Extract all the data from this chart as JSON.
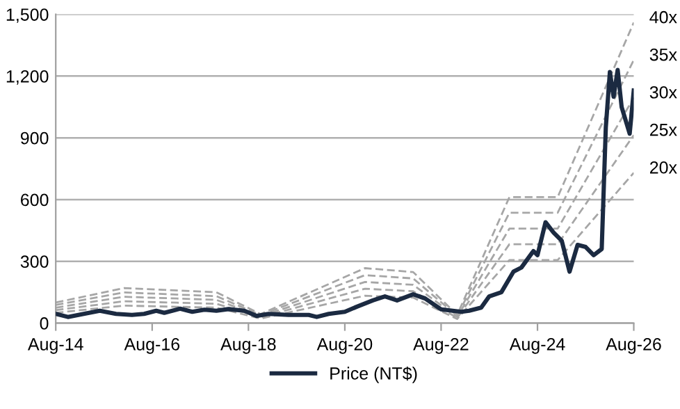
{
  "chart_data": {
    "type": "line",
    "xlim": [
      "2014-08",
      "2026-08"
    ],
    "xticks": [
      {
        "value": "2014-08",
        "label": "Aug-14"
      },
      {
        "value": "2016-08",
        "label": "Aug-16"
      },
      {
        "value": "2018-08",
        "label": "Aug-18"
      },
      {
        "value": "2020-08",
        "label": "Aug-20"
      },
      {
        "value": "2022-08",
        "label": "Aug-22"
      },
      {
        "value": "2024-08",
        "label": "Aug-24"
      },
      {
        "value": "2026-08",
        "label": "Aug-26"
      }
    ],
    "ylim": [
      0,
      1500
    ],
    "yticks": [
      0,
      300,
      600,
      900,
      {
        "value": 1200,
        "label": "1,200"
      },
      {
        "value": 1500,
        "label": "1,500"
      }
    ],
    "grid": "y",
    "legend": "bottom",
    "series": [
      {
        "name": "20x",
        "color": "#a6a6a6",
        "line_style": "dashed",
        "x": [
          "2014-08",
          "2016-01",
          "2017-12",
          "2018-11",
          "2021-01",
          "2022-01",
          "2022-12",
          "2024-01",
          "2025-01",
          "2026-08"
        ],
        "values": [
          50,
          85,
          75,
          22,
          133,
          124,
          20,
          306,
          306,
          730
        ]
      },
      {
        "name": "25x",
        "color": "#a6a6a6",
        "line_style": "dashed",
        "x": [
          "2014-08",
          "2016-01",
          "2017-12",
          "2018-11",
          "2021-01",
          "2022-01",
          "2022-12",
          "2024-01",
          "2025-01",
          "2026-08"
        ],
        "values": [
          63,
          106,
          94,
          28,
          167,
          155,
          25,
          383,
          383,
          913
        ]
      },
      {
        "name": "30x",
        "color": "#a6a6a6",
        "line_style": "dashed",
        "x": [
          "2014-08",
          "2016-01",
          "2017-12",
          "2018-11",
          "2021-01",
          "2022-01",
          "2022-12",
          "2024-01",
          "2025-01",
          "2026-08"
        ],
        "values": [
          75,
          128,
          113,
          33,
          200,
          186,
          30,
          459,
          459,
          1095
        ]
      },
      {
        "name": "35x",
        "color": "#a6a6a6",
        "line_style": "dashed",
        "x": [
          "2014-08",
          "2016-01",
          "2017-12",
          "2018-11",
          "2021-01",
          "2022-01",
          "2022-12",
          "2024-01",
          "2025-01",
          "2026-08"
        ],
        "values": [
          88,
          149,
          131,
          39,
          233,
          217,
          35,
          536,
          536,
          1278
        ]
      },
      {
        "name": "40x",
        "color": "#a6a6a6",
        "line_style": "dashed",
        "x": [
          "2014-08",
          "2016-01",
          "2017-12",
          "2018-11",
          "2021-01",
          "2022-01",
          "2022-12",
          "2024-01",
          "2025-01",
          "2026-08"
        ],
        "values": [
          100,
          170,
          150,
          44,
          267,
          248,
          40,
          612,
          612,
          1460
        ]
      },
      {
        "name": "Price (NT$)",
        "color": "#1b2a41",
        "line_style": "solid",
        "x": [
          "2014-08",
          "2014-11",
          "2015-03",
          "2015-07",
          "2015-11",
          "2016-03",
          "2016-06",
          "2016-09",
          "2016-11",
          "2017-03",
          "2017-06",
          "2017-09",
          "2017-12",
          "2018-03",
          "2018-07",
          "2018-10",
          "2019-01",
          "2019-06",
          "2019-11",
          "2020-01",
          "2020-04",
          "2020-08",
          "2020-11",
          "2021-03",
          "2021-06",
          "2021-09",
          "2022-01",
          "2022-04",
          "2022-08",
          "2023-01",
          "2023-03",
          "2023-06",
          "2023-08",
          "2023-11",
          "2024-02",
          "2024-04",
          "2024-07",
          "2024-08",
          "2024-10",
          "2024-12",
          "2025-02",
          "2025-04",
          "2025-06",
          "2025-08",
          "2025-10",
          "2025-12",
          "2026-01",
          "2026-02",
          "2026-03",
          "2026-04",
          "2026-05",
          "2026-07",
          "2026-08"
        ],
        "values": [
          45,
          30,
          45,
          60,
          45,
          40,
          45,
          60,
          50,
          70,
          55,
          65,
          60,
          68,
          60,
          35,
          45,
          40,
          40,
          30,
          45,
          55,
          80,
          110,
          130,
          110,
          140,
          120,
          67,
          55,
          60,
          75,
          130,
          150,
          250,
          270,
          350,
          330,
          490,
          440,
          400,
          250,
          380,
          370,
          330,
          360,
          950,
          1220,
          1100,
          1230,
          1050,
          920,
          1130
        ]
      }
    ]
  }
}
